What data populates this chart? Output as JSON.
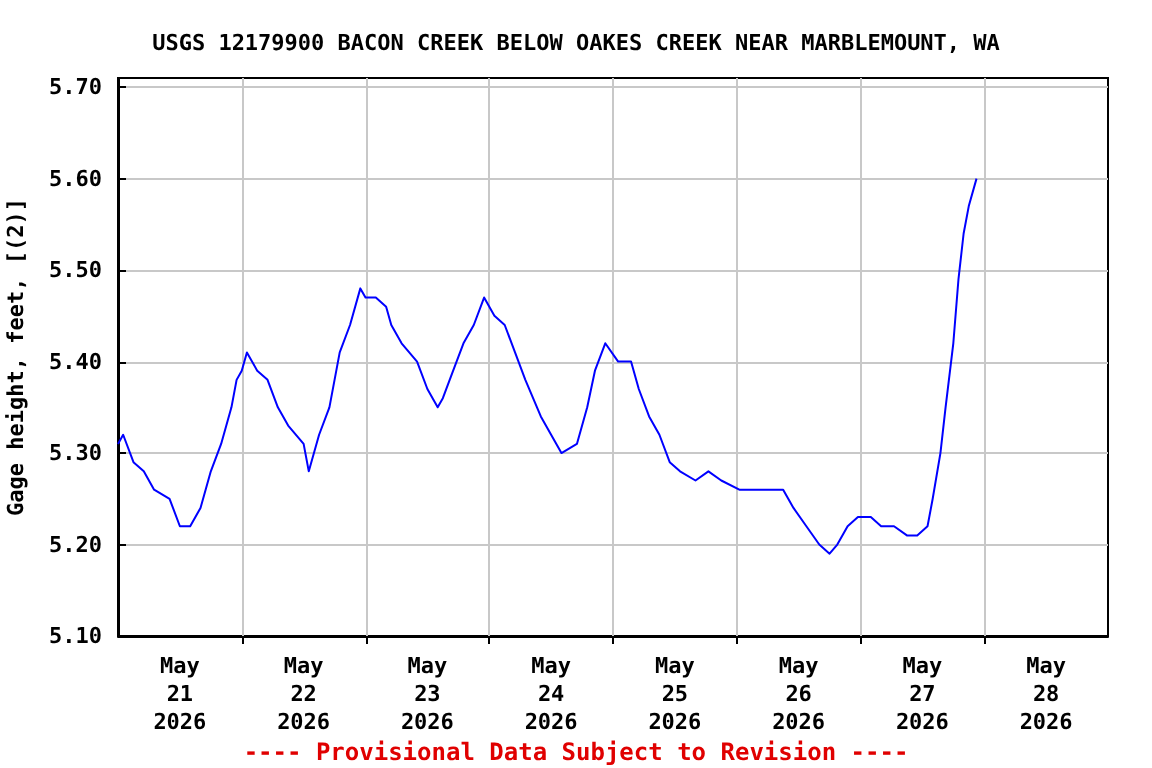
{
  "chart_data": {
    "type": "line",
    "title": "USGS 12179900 BACON CREEK BELOW OAKES CREEK NEAR MARBLEMOUNT, WA",
    "ylabel": "Gage height, feet, [(2)]",
    "annotations": [
      "---- Provisional Data Subject to Revision ----"
    ],
    "x": [
      "2026-05-21T00:00",
      "2026-05-21T01:00",
      "2026-05-21T03:00",
      "2026-05-21T05:00",
      "2026-05-21T07:00",
      "2026-05-21T10:00",
      "2026-05-21T12:00",
      "2026-05-21T14:00",
      "2026-05-21T16:00",
      "2026-05-21T18:00",
      "2026-05-21T20:00",
      "2026-05-21T22:00",
      "2026-05-21T23:00",
      "2026-05-22T00:00",
      "2026-05-22T01:00",
      "2026-05-22T03:00",
      "2026-05-22T05:00",
      "2026-05-22T07:00",
      "2026-05-22T09:00",
      "2026-05-22T12:00",
      "2026-05-22T13:00",
      "2026-05-22T15:00",
      "2026-05-22T17:00",
      "2026-05-22T19:00",
      "2026-05-22T21:00",
      "2026-05-22T23:00",
      "2026-05-23T00:00",
      "2026-05-23T02:00",
      "2026-05-23T04:00",
      "2026-05-23T05:00",
      "2026-05-23T07:00",
      "2026-05-23T10:00",
      "2026-05-23T12:00",
      "2026-05-23T14:00",
      "2026-05-23T15:00",
      "2026-05-23T17:00",
      "2026-05-23T19:00",
      "2026-05-23T21:00",
      "2026-05-23T23:00",
      "2026-05-24T01:00",
      "2026-05-24T03:00",
      "2026-05-24T05:00",
      "2026-05-24T07:00",
      "2026-05-24T10:00",
      "2026-05-24T12:00",
      "2026-05-24T14:00",
      "2026-05-24T17:00",
      "2026-05-24T19:00",
      "2026-05-24T20:30",
      "2026-05-24T22:30",
      "2026-05-25T01:00",
      "2026-05-25T03:30",
      "2026-05-25T05:00",
      "2026-05-25T07:00",
      "2026-05-25T09:00",
      "2026-05-25T11:00",
      "2026-05-25T13:00",
      "2026-05-25T16:00",
      "2026-05-25T18:30",
      "2026-05-25T21:00",
      "2026-05-26T00:30",
      "2026-05-26T03:30",
      "2026-05-26T06:00",
      "2026-05-26T09:00",
      "2026-05-26T11:00",
      "2026-05-26T13:30",
      "2026-05-26T16:00",
      "2026-05-26T18:00",
      "2026-05-26T19:30",
      "2026-05-26T21:30",
      "2026-05-26T23:30",
      "2026-05-27T02:00",
      "2026-05-27T04:00",
      "2026-05-27T06:30",
      "2026-05-27T09:00",
      "2026-05-27T11:00",
      "2026-05-27T13:00",
      "2026-05-27T14:00",
      "2026-05-27T15:30",
      "2026-05-27T16:30",
      "2026-05-27T18:00",
      "2026-05-27T19:00",
      "2026-05-27T20:00",
      "2026-05-27T21:00",
      "2026-05-27T22:30"
    ],
    "series": [
      {
        "color": "#0000ff",
        "values": [
          5.31,
          5.32,
          5.29,
          5.28,
          5.26,
          5.25,
          5.22,
          5.22,
          5.24,
          5.28,
          5.31,
          5.35,
          5.38,
          5.39,
          5.41,
          5.39,
          5.38,
          5.35,
          5.33,
          5.31,
          5.28,
          5.32,
          5.35,
          5.41,
          5.44,
          5.48,
          5.47,
          5.47,
          5.46,
          5.44,
          5.42,
          5.4,
          5.37,
          5.35,
          5.36,
          5.39,
          5.42,
          5.44,
          5.47,
          5.45,
          5.44,
          5.41,
          5.38,
          5.34,
          5.32,
          5.3,
          5.31,
          5.35,
          5.39,
          5.42,
          5.4,
          5.4,
          5.37,
          5.34,
          5.32,
          5.29,
          5.28,
          5.27,
          5.28,
          5.27,
          5.26,
          5.26,
          5.26,
          5.26,
          5.24,
          5.22,
          5.2,
          5.19,
          5.2,
          5.22,
          5.23,
          5.23,
          5.22,
          5.22,
          5.21,
          5.21,
          5.22,
          5.25,
          5.3,
          5.35,
          5.42,
          5.49,
          5.54,
          5.57,
          5.6
        ]
      }
    ],
    "xlim": [
      "2026-05-21T00:00",
      "2026-05-29T00:00"
    ],
    "xticks": [
      {
        "value": "2026-05-21T12:00",
        "label": "May\n21\n2026"
      },
      {
        "value": "2026-05-22T12:00",
        "label": "May\n22\n2026"
      },
      {
        "value": "2026-05-23T12:00",
        "label": "May\n23\n2026"
      },
      {
        "value": "2026-05-24T12:00",
        "label": "May\n24\n2026"
      },
      {
        "value": "2026-05-25T12:00",
        "label": "May\n25\n2026"
      },
      {
        "value": "2026-05-26T12:00",
        "label": "May\n26\n2026"
      },
      {
        "value": "2026-05-27T12:00",
        "label": "May\n27\n2026"
      },
      {
        "value": "2026-05-28T12:00",
        "label": "May\n28\n2026"
      },
      {
        "value": "2026-05-22T00:00",
        "label": null
      },
      {
        "value": "2026-05-23T00:00",
        "label": null
      },
      {
        "value": "2026-05-24T00:00",
        "label": null
      },
      {
        "value": "2026-05-25T00:00",
        "label": null
      },
      {
        "value": "2026-05-26T00:00",
        "label": null
      },
      {
        "value": "2026-05-27T00:00",
        "label": null
      },
      {
        "value": "2026-05-28T00:00",
        "label": null
      }
    ],
    "ylim": [
      5.1,
      5.71
    ],
    "yticks": [
      {
        "value": 5.1,
        "label": "5.10"
      },
      {
        "value": 5.2,
        "label": "5.20"
      },
      {
        "value": 5.3,
        "label": "5.30"
      },
      {
        "value": 5.4,
        "label": "5.40"
      },
      {
        "value": 5.5,
        "label": "5.50"
      },
      {
        "value": 5.6,
        "label": "5.60"
      },
      {
        "value": 5.7,
        "label": "5.70"
      }
    ],
    "grid": true,
    "marker": "none",
    "line_style": "solid"
  }
}
